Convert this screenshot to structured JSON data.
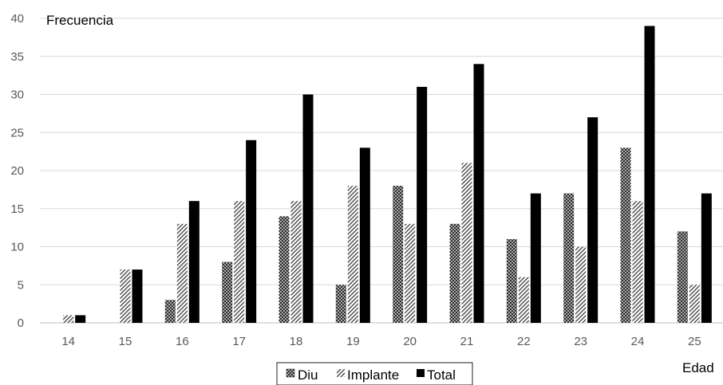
{
  "chart_data": {
    "type": "bar",
    "ylabel": "Frecuencia",
    "xlabel": "Edad",
    "ylim": [
      0,
      40
    ],
    "yticks": [
      "0",
      "5",
      "10",
      "15",
      "20",
      "25",
      "30",
      "35",
      "40"
    ],
    "categories": [
      "14",
      "15",
      "16",
      "17",
      "18",
      "19",
      "20",
      "21",
      "22",
      "23",
      "24",
      "25"
    ],
    "series": [
      {
        "name": "Diu",
        "values": [
          0,
          0,
          3,
          8,
          14,
          5,
          18,
          13,
          11,
          17,
          23,
          12
        ],
        "color": "#3a3a3a",
        "pattern": "crosshatch-dots"
      },
      {
        "name": "Implante",
        "values": [
          1,
          7,
          13,
          16,
          16,
          18,
          13,
          21,
          6,
          10,
          16,
          5
        ],
        "color": "#555555",
        "pattern": "diagonal-hatch"
      },
      {
        "name": "Total",
        "values": [
          1,
          7,
          16,
          24,
          30,
          23,
          31,
          34,
          17,
          27,
          39,
          17
        ],
        "color": "#000000",
        "pattern": "solid"
      }
    ],
    "grid": true,
    "legend": "bottom"
  }
}
